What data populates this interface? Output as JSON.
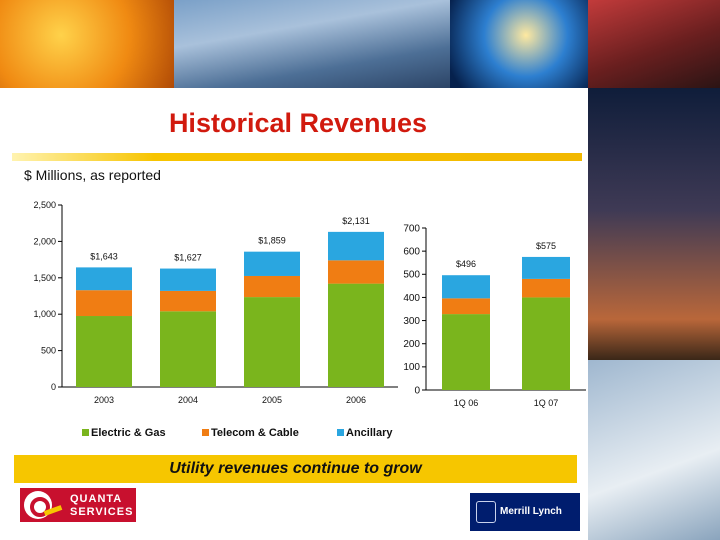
{
  "slide": {
    "title": "Historical Revenues",
    "subtitle": "$ Millions, as reported",
    "callout": "Utility revenues continue to grow"
  },
  "logos": {
    "quanta_line1": "QUANTA",
    "quanta_line2": "SERVICES",
    "merrill": "Merrill Lynch"
  },
  "colors": {
    "electric_gas": "#7ab51d",
    "telecom_cable": "#f07d13",
    "ancillary": "#2aa6e0",
    "title_red": "#d11a0e",
    "callout_yellow": "#f6c600"
  },
  "legend": [
    {
      "name": "Electric & Gas",
      "color": "#7ab51d"
    },
    {
      "name": "Telecom & Cable",
      "color": "#f07d13"
    },
    {
      "name": "Ancillary",
      "color": "#2aa6e0"
    }
  ],
  "chart_data": [
    {
      "type": "bar",
      "stacked": true,
      "categories": [
        "2003",
        "2004",
        "2005",
        "2006"
      ],
      "series": [
        {
          "name": "Electric & Gas",
          "values": [
            975,
            1040,
            1235,
            1420
          ]
        },
        {
          "name": "Telecom & Cable",
          "values": [
            355,
            280,
            290,
            320
          ]
        },
        {
          "name": "Ancillary",
          "values": [
            313,
            307,
            334,
            391
          ]
        }
      ],
      "totals_labels": [
        "$1,643",
        "$1,627",
        "$1,859",
        "$2,131"
      ],
      "ylim": [
        0,
        2500
      ],
      "yticks": [
        0,
        500,
        1000,
        1500,
        2000,
        2500
      ],
      "ytick_labels": [
        "0",
        "500",
        "1,000",
        "1,500",
        "2,000",
        "2,500"
      ],
      "grid": false,
      "legend_position": "bottom"
    },
    {
      "type": "bar",
      "stacked": true,
      "categories": [
        "1Q 06",
        "1Q 07"
      ],
      "series": [
        {
          "name": "Electric & Gas",
          "values": [
            328,
            400
          ]
        },
        {
          "name": "Telecom & Cable",
          "values": [
            68,
            80
          ]
        },
        {
          "name": "Ancillary",
          "values": [
            100,
            95
          ]
        }
      ],
      "totals_labels": [
        "$496",
        "$575"
      ],
      "ylim": [
        0,
        700
      ],
      "yticks": [
        0,
        100,
        200,
        300,
        400,
        500,
        600,
        700
      ],
      "ytick_labels": [
        "0",
        "100",
        "200",
        "300",
        "400",
        "500",
        "600",
        "700"
      ],
      "grid": false,
      "legend_position": "bottom"
    }
  ]
}
